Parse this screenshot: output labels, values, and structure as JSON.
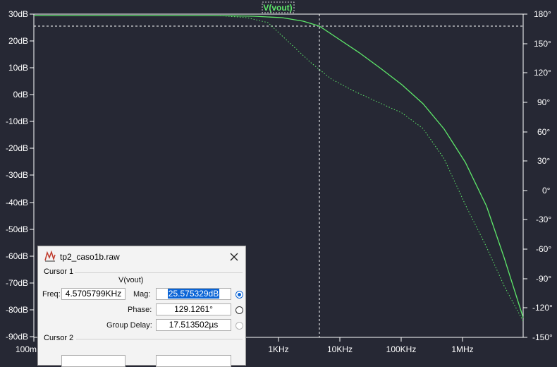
{
  "window": {
    "title": "tp2_caso1b.raw"
  },
  "trace": {
    "label": "V(vout)",
    "color": "#5ee86a"
  },
  "axes": {
    "left_ticks": [
      "30dB",
      "20dB",
      "10dB",
      "0dB",
      "-10dB",
      "-20dB",
      "-30dB",
      "-40dB",
      "-50dB",
      "-60dB",
      "-70dB",
      "-80dB",
      "-90dB"
    ],
    "right_ticks": [
      "180°",
      "150°",
      "120°",
      "90°",
      "60°",
      "30°",
      "0°",
      "-30°",
      "-60°",
      "-90°",
      "-120°",
      "-150°"
    ],
    "bottom_ticks": [
      "100m",
      "1KHz",
      "10KHz",
      "100KHz",
      "1MHz"
    ]
  },
  "cursor1": {
    "group_label": "Cursor 1",
    "trace_name": "V(vout)",
    "freq_label": "Freq:",
    "freq_value": "4.5705799KHz",
    "mag_label": "Mag:",
    "mag_value": "25.575329dB",
    "phase_label": "Phase:",
    "phase_value": "129.1261°",
    "group_delay_label": "Group Delay:",
    "group_delay_value": "17.513502µs"
  },
  "cursor2": {
    "group_label": "Cursor 2"
  },
  "colors": {
    "background": "#262834",
    "grid": "#ffffff",
    "trace": "#5ee86a",
    "selection": "#0a64d6"
  },
  "icons": {
    "app": "waveform-app-icon",
    "close": "close-icon"
  }
}
